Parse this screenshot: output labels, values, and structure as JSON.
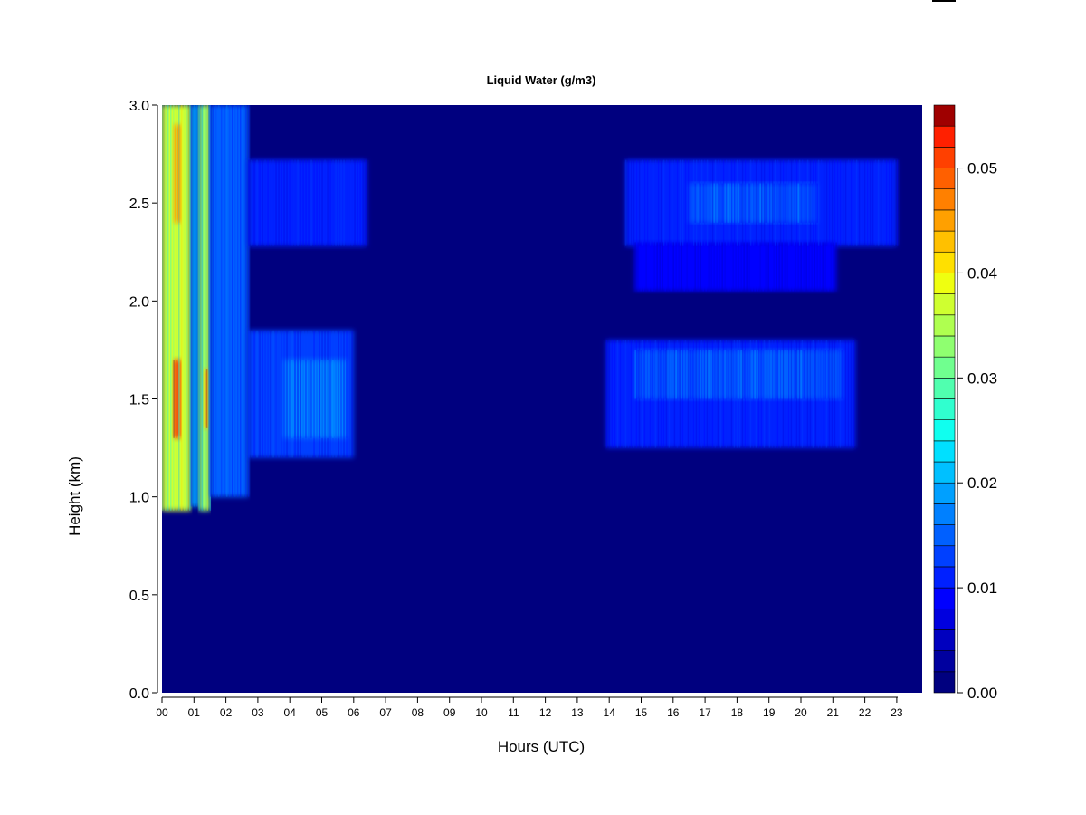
{
  "chart_data": {
    "type": "heatmap",
    "title": "Liquid Water (g/m3)",
    "xlabel": "Hours (UTC)",
    "ylabel": "Height (km)",
    "x_ticks": [
      "00",
      "01",
      "02",
      "03",
      "04",
      "05",
      "06",
      "07",
      "08",
      "09",
      "10",
      "11",
      "12",
      "13",
      "14",
      "15",
      "16",
      "17",
      "18",
      "19",
      "20",
      "21",
      "22",
      "23"
    ],
    "xlim": [
      0,
      23.8
    ],
    "y_ticks": [
      "0.0",
      "0.5",
      "1.0",
      "1.5",
      "2.0",
      "2.5",
      "3.0"
    ],
    "ylim": [
      0,
      3
    ],
    "colorbar": {
      "ticks": [
        "0.00",
        "0.01",
        "0.02",
        "0.03",
        "0.04",
        "0.05"
      ],
      "range": [
        0,
        0.056
      ],
      "levels": 28,
      "colors": [
        "#00007f",
        "#00009f",
        "#0000bf",
        "#0000df",
        "#0000ff",
        "#0020ff",
        "#0040ff",
        "#0060ff",
        "#0080ff",
        "#00a0ff",
        "#00c0ff",
        "#00e0ff",
        "#10ffef",
        "#30ffcf",
        "#50ffaf",
        "#70ff8f",
        "#8fff70",
        "#afff50",
        "#cfff30",
        "#efff10",
        "#ffe000",
        "#ffc000",
        "#ffa000",
        "#ff8000",
        "#ff6000",
        "#ff4000",
        "#ff2000",
        "#9f0000"
      ]
    },
    "regions": [
      {
        "t0": 0.0,
        "t1": 0.9,
        "h0": 0.93,
        "h1": 3.0,
        "value": 0.036
      },
      {
        "t0": 0.35,
        "t1": 0.6,
        "h0": 1.3,
        "h1": 1.7,
        "value": 0.05
      },
      {
        "t0": 0.35,
        "t1": 0.6,
        "h0": 2.4,
        "h1": 2.9,
        "value": 0.045
      },
      {
        "t0": 0.9,
        "t1": 1.15,
        "h0": 0.95,
        "h1": 3.0,
        "value": 0.018
      },
      {
        "t0": 1.15,
        "t1": 1.5,
        "h0": 0.93,
        "h1": 3.0,
        "value": 0.032
      },
      {
        "t0": 1.3,
        "t1": 1.45,
        "h0": 1.35,
        "h1": 1.65,
        "value": 0.045
      },
      {
        "t0": 1.5,
        "t1": 2.7,
        "h0": 1.0,
        "h1": 3.0,
        "value": 0.014
      },
      {
        "t0": 2.7,
        "t1": 6.4,
        "h0": 2.28,
        "h1": 2.72,
        "value": 0.011
      },
      {
        "t0": 2.7,
        "t1": 6.0,
        "h0": 1.2,
        "h1": 1.85,
        "value": 0.012
      },
      {
        "t0": 3.8,
        "t1": 5.8,
        "h0": 1.3,
        "h1": 1.7,
        "value": 0.017
      },
      {
        "t0": 14.5,
        "t1": 23.0,
        "h0": 2.28,
        "h1": 2.72,
        "value": 0.011
      },
      {
        "t0": 14.8,
        "t1": 21.1,
        "h0": 2.05,
        "h1": 2.3,
        "value": 0.008
      },
      {
        "t0": 16.5,
        "t1": 20.5,
        "h0": 2.4,
        "h1": 2.6,
        "value": 0.015
      },
      {
        "t0": 13.9,
        "t1": 21.7,
        "h0": 1.25,
        "h1": 1.8,
        "value": 0.011
      },
      {
        "t0": 14.8,
        "t1": 21.3,
        "h0": 1.5,
        "h1": 1.75,
        "value": 0.015
      }
    ]
  }
}
